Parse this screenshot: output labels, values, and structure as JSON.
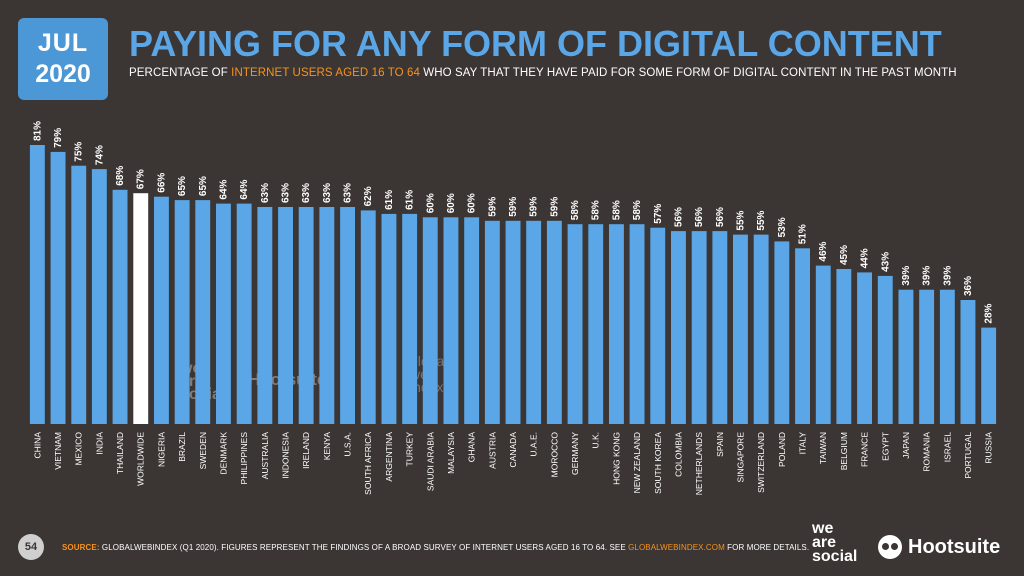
{
  "header": {
    "date_month": "JUL",
    "date_year": "2020",
    "title": "PAYING FOR ANY FORM OF DIGITAL CONTENT",
    "subtitle_pre": "PERCENTAGE OF ",
    "subtitle_highlight": "INTERNET USERS AGED 16 TO 64",
    "subtitle_post": " WHO SAY THAT THEY HAVE PAID FOR SOME FORM OF DIGITAL CONTENT IN THE PAST MONTH"
  },
  "footer": {
    "page_number": "54",
    "source_label": "SOURCE:",
    "source_text": " GLOBALWEBINDEX (Q1 2020). FIGURES REPRESENT THE FINDINGS OF A BROAD SURVEY OF INTERNET USERS AGED 16 TO 64. SEE ",
    "source_link": "GLOBALWEBINDEX.COM",
    "source_tail": " FOR MORE DETAILS."
  },
  "logos": {
    "we_are_social": [
      "we",
      "are",
      "social"
    ],
    "hootsuite": "Hootsuite",
    "watermark_gwi": [
      "global",
      "web",
      "index"
    ]
  },
  "colors": {
    "background": "#3b3533",
    "bar": "#5aa6e6",
    "highlight_bar": "#ffffff",
    "accent": "#f7931e",
    "badge": "#4c97d6"
  },
  "chart_data": {
    "type": "bar",
    "orientation": "vertical",
    "categories": [
      "CHINA",
      "VIETNAM",
      "MEXICO",
      "INDIA",
      "THAILAND",
      "WORLDWIDE",
      "NIGERIA",
      "BRAZIL",
      "SWEDEN",
      "DENMARK",
      "PHILIPPINES",
      "AUSTRALIA",
      "INDONESIA",
      "IRELAND",
      "KENYA",
      "U.S.A.",
      "SOUTH AFRICA",
      "ARGENTINA",
      "TURKEY",
      "SAUDI ARABIA",
      "MALAYSIA",
      "GHANA",
      "AUSTRIA",
      "CANADA",
      "U.A.E.",
      "MOROCCO",
      "GERMANY",
      "U.K.",
      "HONG KONG",
      "NEW ZEALAND",
      "SOUTH KOREA",
      "COLOMBIA",
      "NETHERLANDS",
      "SPAIN",
      "SINGAPORE",
      "SWITZERLAND",
      "POLAND",
      "ITALY",
      "TAIWAN",
      "BELGIUM",
      "FRANCE",
      "EGYPT",
      "JAPAN",
      "ROMANIA",
      "ISRAEL",
      "PORTUGAL",
      "RUSSIA"
    ],
    "values": [
      81,
      79,
      75,
      74,
      68,
      67,
      66,
      65,
      65,
      64,
      64,
      63,
      63,
      63,
      63,
      63,
      62,
      61,
      61,
      60,
      60,
      60,
      59,
      59,
      59,
      59,
      58,
      58,
      58,
      58,
      57,
      56,
      56,
      56,
      55,
      55,
      53,
      51,
      46,
      45,
      44,
      43,
      39,
      39,
      39,
      36,
      28
    ],
    "value_labels": [
      "81%",
      "79%",
      "75%",
      "74%",
      "68%",
      "67%",
      "66%",
      "65%",
      "65%",
      "64%",
      "64%",
      "63%",
      "63%",
      "63%",
      "63%",
      "63%",
      "62%",
      "61%",
      "61%",
      "60%",
      "60%",
      "60%",
      "59%",
      "59%",
      "59%",
      "59%",
      "58%",
      "58%",
      "58%",
      "58%",
      "57%",
      "56%",
      "56%",
      "56%",
      "55%",
      "55%",
      "53%",
      "51%",
      "46%",
      "45%",
      "44%",
      "43%",
      "39%",
      "39%",
      "39%",
      "36%",
      "28%"
    ],
    "highlight": "WORLDWIDE",
    "ylim": [
      0,
      100
    ],
    "grid": false,
    "legend": "none"
  }
}
